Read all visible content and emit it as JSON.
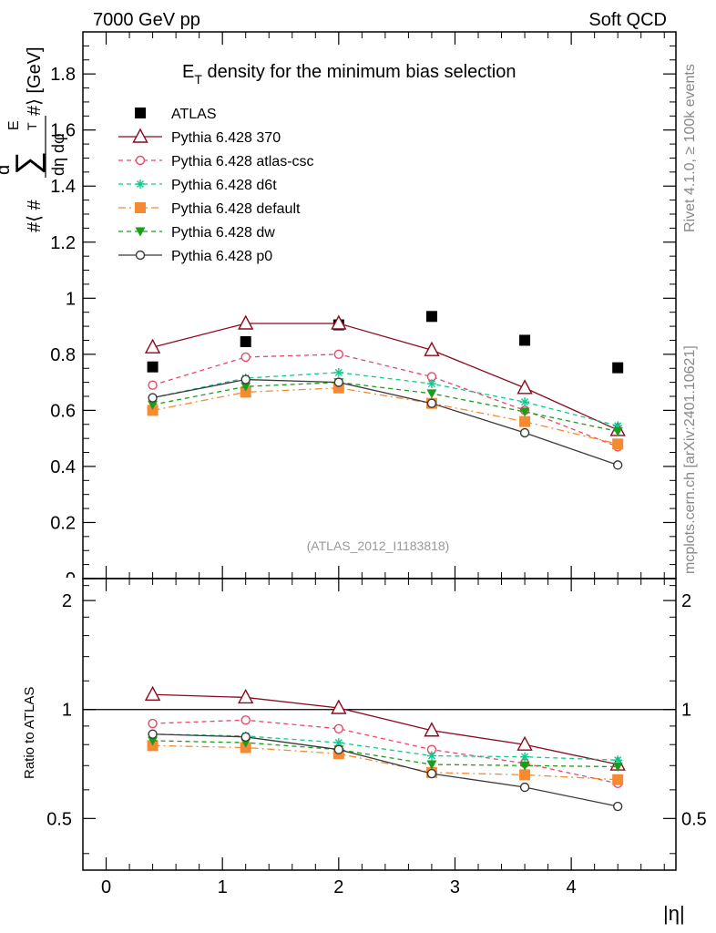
{
  "header": {
    "left": "7000 GeV pp",
    "right": "Soft QCD"
  },
  "side_labels": {
    "top": "Rivet 4.1.0, ≥ 100k events",
    "bottom": "mcplots.cern.ch [arXiv:2401.10621]"
  },
  "reference": "(ATLAS_2012_I1183818)",
  "colors": {
    "atlas": "#000000",
    "p370": "#8b0a1e",
    "atlas_csc": "#e8476a",
    "d6t": "#10c98c",
    "default": "#f58a32",
    "dw": "#1a9e1a",
    "p0": "#3a3a3a"
  },
  "chart_data": [
    {
      "type": "scatter",
      "title": "E_T density  for the minimum bias selection",
      "title_main": "E",
      "title_sub": "T",
      "title_rest": " density  for the minimum bias selection",
      "ylabel": "#⟨ # d∑E_T / dη dφ #⟩ [GeV]",
      "ylabel_parts": {
        "outer_left": "#⟨ #",
        "numer_d": "d",
        "sigma": "∑",
        "numer_e": "E",
        "numer_t": "T",
        "numer_close": "#⟩ [GeV]",
        "denom": "dη dφ"
      },
      "xlim": [
        -0.2,
        4.9
      ],
      "ylim": [
        0,
        1.95
      ],
      "yticks": [
        0,
        0.2,
        0.4,
        0.6,
        0.8,
        1,
        1.2,
        1.4,
        1.6,
        1.8
      ],
      "ytick_labels": [
        "0",
        "0.2",
        "0.4",
        "0.6",
        "0.8",
        "1",
        "1.2",
        "1.4",
        "1.6",
        "1.8"
      ],
      "x": [
        0.4,
        1.2,
        2.0,
        2.8,
        3.6,
        4.4
      ],
      "series": [
        {
          "name": "ATLAS",
          "key": "atlas",
          "marker": "square-filled",
          "line": "none",
          "values": [
            0.755,
            0.845,
            0.905,
            0.935,
            0.85,
            0.752
          ]
        },
        {
          "name": "Pythia 6.428 370",
          "key": "p370",
          "marker": "triangle-open",
          "line": "solid",
          "values": [
            0.825,
            0.91,
            0.91,
            0.815,
            0.68,
            0.53
          ]
        },
        {
          "name": "Pythia 6.428 atlas-csc",
          "key": "atlas_csc",
          "marker": "circle-open",
          "line": "dashed",
          "values": [
            0.69,
            0.79,
            0.8,
            0.72,
            0.6,
            0.47
          ]
        },
        {
          "name": "Pythia 6.428 d6t",
          "key": "d6t",
          "marker": "star",
          "line": "dashed",
          "values": [
            0.645,
            0.715,
            0.735,
            0.695,
            0.63,
            0.545
          ]
        },
        {
          "name": "Pythia 6.428 default",
          "key": "default",
          "marker": "square-filled",
          "line": "dashdot",
          "values": [
            0.6,
            0.665,
            0.68,
            0.625,
            0.56,
            0.48
          ]
        },
        {
          "name": "Pythia 6.428 dw",
          "key": "dw",
          "marker": "triangle-down-filled",
          "line": "dashed",
          "values": [
            0.62,
            0.685,
            0.7,
            0.66,
            0.595,
            0.525
          ]
        },
        {
          "name": "Pythia 6.428 p0",
          "key": "p0",
          "marker": "circle-open",
          "line": "solid",
          "values": [
            0.645,
            0.71,
            0.7,
            0.625,
            0.52,
            0.405
          ]
        }
      ]
    },
    {
      "type": "line",
      "title": "ratio panel",
      "ylabel": "Ratio to ATLAS",
      "xlabel": "|η|",
      "xlim": [
        -0.2,
        4.9
      ],
      "ylim": [
        0.36,
        2.3
      ],
      "yscale": "log",
      "yticks": [
        0.5,
        1,
        2
      ],
      "ytick_labels": [
        "0.5",
        "1",
        "2"
      ],
      "xticks": [
        0,
        1,
        2,
        3,
        4
      ],
      "xtick_labels": [
        "0",
        "1",
        "2",
        "3",
        "4"
      ],
      "reference_line": 1,
      "x": [
        0.4,
        1.2,
        2.0,
        2.8,
        3.6,
        4.4
      ],
      "series": [
        {
          "name": "Pythia 6.428 370",
          "key": "p370",
          "marker": "triangle-open",
          "line": "solid",
          "values": [
            1.1,
            1.08,
            1.01,
            0.875,
            0.8,
            0.705
          ]
        },
        {
          "name": "Pythia 6.428 atlas-csc",
          "key": "atlas_csc",
          "marker": "circle-open",
          "line": "dashed",
          "values": [
            0.915,
            0.935,
            0.885,
            0.775,
            0.71,
            0.625
          ]
        },
        {
          "name": "Pythia 6.428 d6t",
          "key": "d6t",
          "marker": "star",
          "line": "dashed",
          "values": [
            0.855,
            0.845,
            0.81,
            0.745,
            0.74,
            0.725
          ]
        },
        {
          "name": "Pythia 6.428 default",
          "key": "default",
          "marker": "square-filled",
          "line": "dashdot",
          "values": [
            0.795,
            0.785,
            0.755,
            0.67,
            0.66,
            0.64
          ]
        },
        {
          "name": "Pythia 6.428 dw",
          "key": "dw",
          "marker": "triangle-down-filled",
          "line": "dashed",
          "values": [
            0.82,
            0.81,
            0.775,
            0.705,
            0.7,
            0.695
          ]
        },
        {
          "name": "Pythia 6.428 p0",
          "key": "p0",
          "marker": "circle-open",
          "line": "solid",
          "values": [
            0.855,
            0.84,
            0.775,
            0.665,
            0.61,
            0.54
          ]
        }
      ]
    }
  ]
}
